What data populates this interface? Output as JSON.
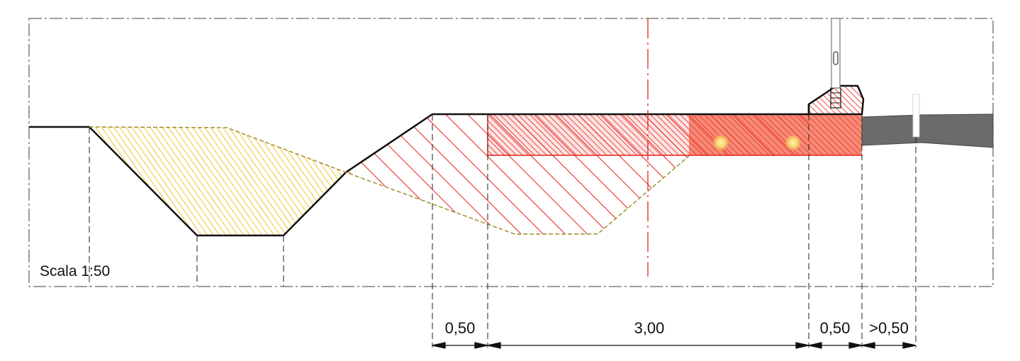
{
  "scale_label": "Scala 1:50",
  "dimensions": {
    "d1": "0,50",
    "d2": "3,00",
    "d3": "0,50",
    "d4": ">0,50"
  },
  "colors": {
    "fill_yellow": "#f2c230",
    "fill_red": "#e8211a",
    "road": "#6b6b6b",
    "outline": "#111111",
    "centerline": "#e02020"
  }
}
